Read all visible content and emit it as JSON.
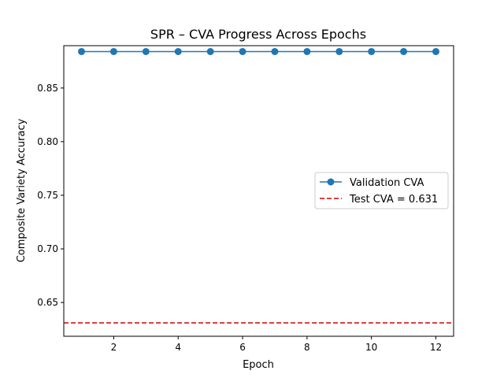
{
  "chart_data": {
    "type": "line",
    "title": "SPR – CVA Progress Across Epochs",
    "xlabel": "Epoch",
    "ylabel": "Composite Variety Accuracy",
    "xlim": [
      0.45,
      12.55
    ],
    "ylim": [
      0.6185,
      0.8895
    ],
    "x_ticks": [
      2,
      4,
      6,
      8,
      10,
      12
    ],
    "y_ticks": [
      0.65,
      0.7,
      0.75,
      0.8,
      0.85
    ],
    "grid": false,
    "legend_position": "center-right",
    "series": [
      {
        "name": "Validation CVA",
        "style": "line-marker",
        "color": "#1f77b4",
        "x": [
          1,
          2,
          3,
          4,
          5,
          6,
          7,
          8,
          9,
          10,
          11,
          12
        ],
        "values": [
          0.884,
          0.884,
          0.884,
          0.884,
          0.884,
          0.884,
          0.884,
          0.884,
          0.884,
          0.884,
          0.884,
          0.884
        ]
      },
      {
        "name": "Test CVA = 0.631",
        "style": "dashed-hline",
        "color": "#d62728",
        "value": 0.631
      }
    ]
  }
}
